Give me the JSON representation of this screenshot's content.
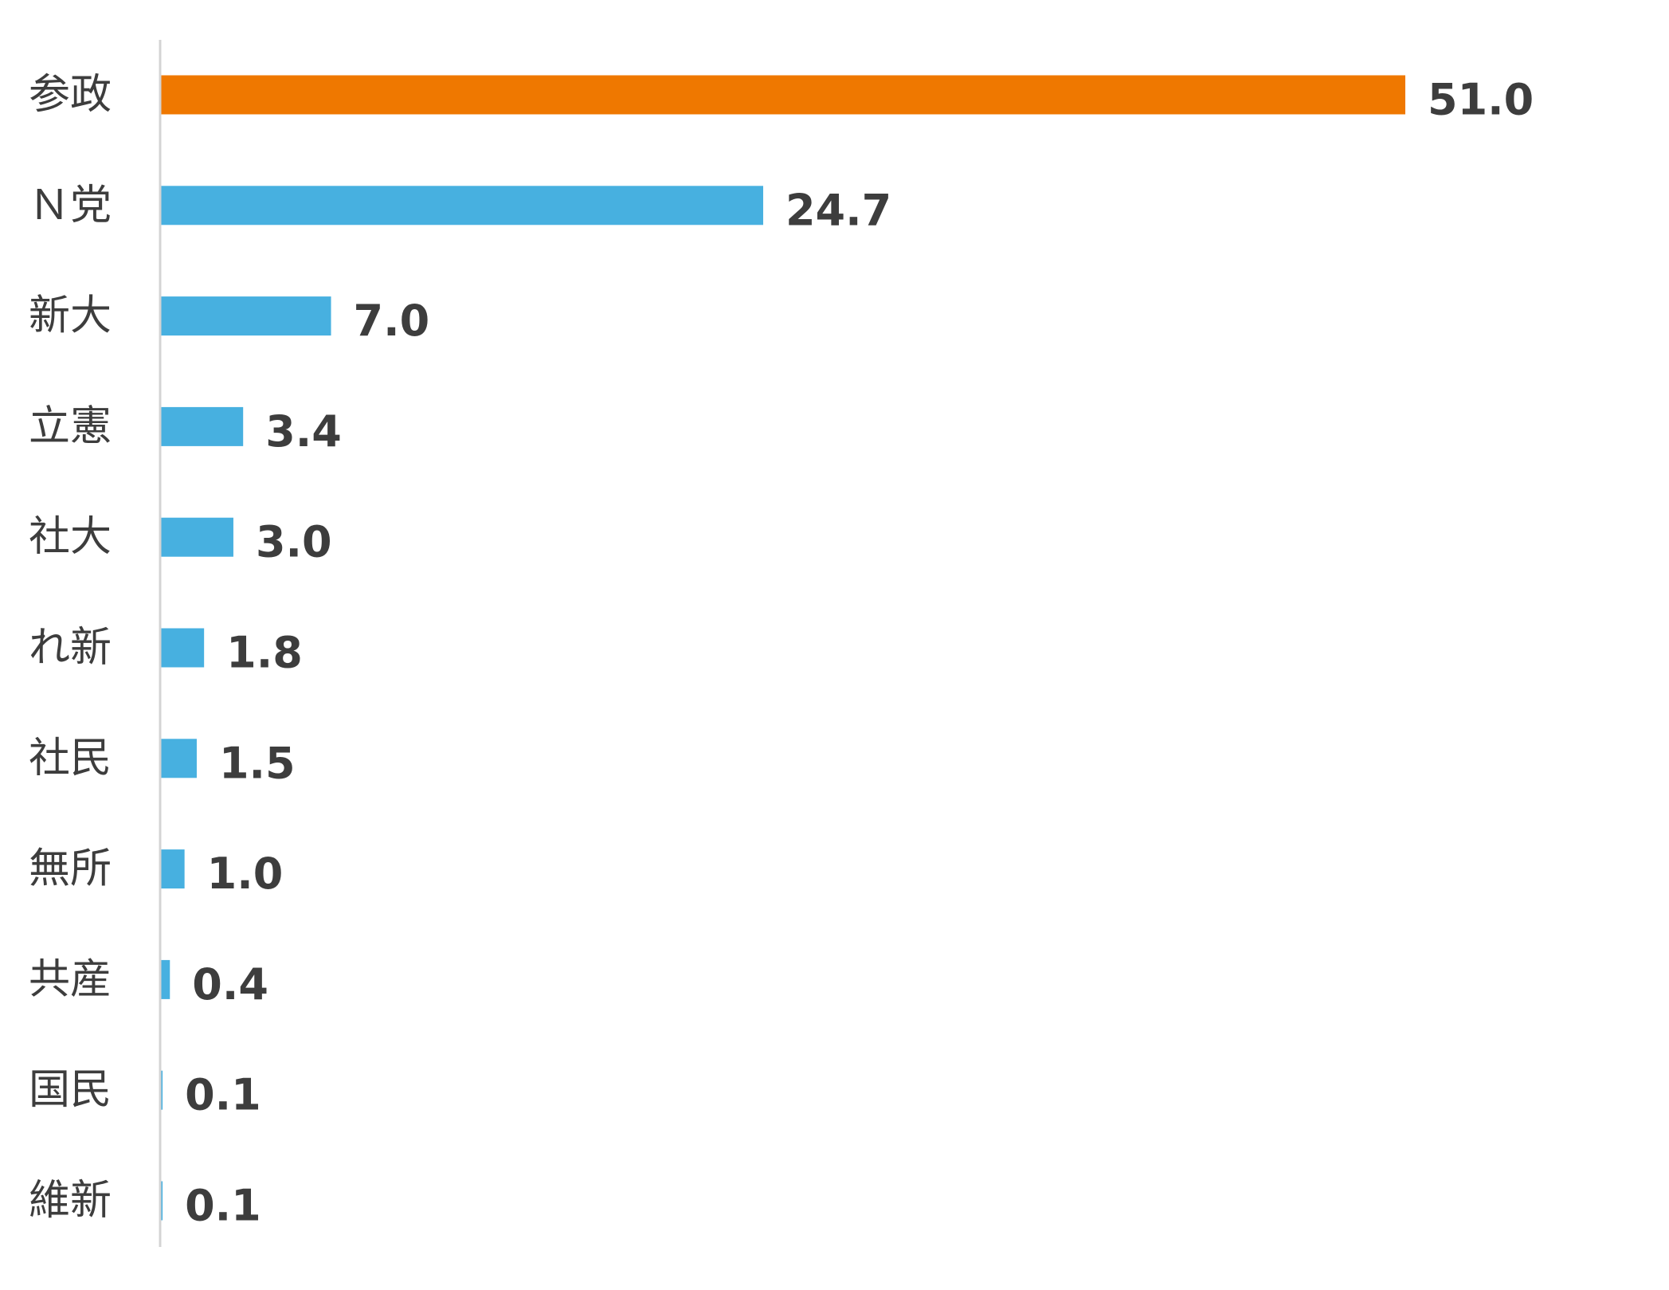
{
  "chart_data": {
    "type": "bar",
    "orientation": "horizontal",
    "title": "",
    "xlabel": "",
    "ylabel": "",
    "categories": [
      "参政",
      "Ｎ党",
      "新大",
      "立憲",
      "社大",
      "れ新",
      "社民",
      "無所",
      "共産",
      "国民",
      "維新"
    ],
    "values": [
      51.0,
      24.7,
      7.0,
      3.4,
      3.0,
      1.8,
      1.5,
      1.0,
      0.4,
      0.1,
      0.1
    ],
    "value_labels": [
      "51.0",
      "24.7",
      "7.0",
      "3.4",
      "3.0",
      "1.8",
      "1.5",
      "1.0",
      "0.4",
      "0.1",
      "0.1"
    ],
    "xlim": [
      0,
      51.0
    ],
    "grid": false,
    "legend": "none",
    "colors": {
      "highlight": "#ef7800",
      "default": "#47b0e0",
      "axis": "#d4d4d4",
      "text": "#3d3d3d"
    },
    "highlight_index": 0
  }
}
